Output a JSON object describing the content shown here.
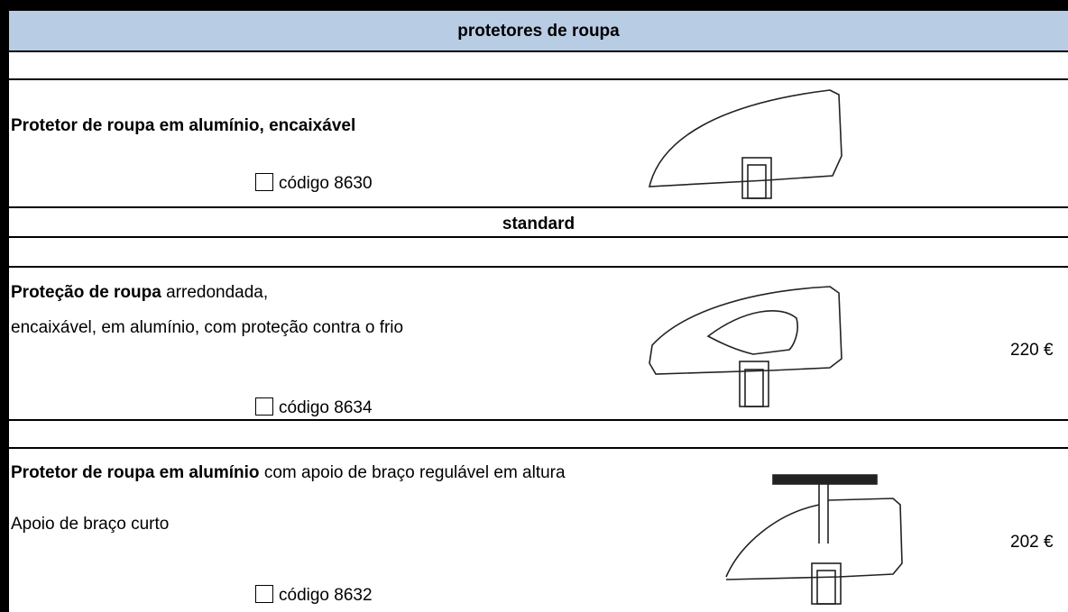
{
  "header": {
    "title": "protetores de roupa"
  },
  "section": {
    "title": "standard"
  },
  "products": [
    {
      "name": "Protetor de roupa em alumínio, encaixável",
      "code": "código 8630"
    },
    {
      "name": "Proteção de roupa",
      "name_rest": "arredondada,",
      "line2": "encaixável, em alumínio, com proteção contra o frio",
      "code": "código 8634",
      "price": "220 €"
    },
    {
      "name": "Protetor de roupa em alumínio",
      "name_rest": "com apoio de braço regulável em altura",
      "line2": "Apoio de braço curto",
      "code": "código 8632",
      "price": "202 €"
    }
  ]
}
